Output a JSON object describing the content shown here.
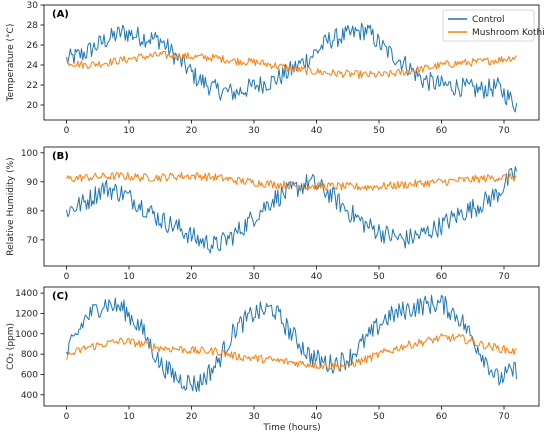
{
  "chart_data": {
    "type": "line",
    "xlabel": "Time (hours)",
    "x_ticks": [
      0,
      10,
      20,
      30,
      40,
      50,
      60,
      70
    ],
    "xlim": [
      -3.6,
      75.6
    ],
    "legend": {
      "placement": "top-right",
      "entries": [
        "Control",
        "Mushroom Kothi"
      ]
    },
    "colors": {
      "Control": "#1f77b4",
      "Mushroom Kothi": "#ff7f0e"
    },
    "panels": [
      {
        "label": "(A)",
        "ylabel": "Temperature (°C)",
        "ylim": [
          18.5,
          30
        ],
        "y_ticks": [
          20,
          22,
          24,
          26,
          28,
          30
        ],
        "series": [
          {
            "name": "Control",
            "x": [
              0,
              3,
              6,
              9,
              12,
              15,
              18,
              21,
              24,
              27,
              30,
              33,
              36,
              39,
              42,
              45,
              48,
              51,
              54,
              57,
              60,
              63,
              66,
              69,
              72
            ],
            "y": [
              24.5,
              25.2,
              26.4,
              27.3,
              26.8,
              26.5,
              24.5,
              22.6,
              21.5,
              21.2,
              21.9,
              22.4,
              23.5,
              24.8,
              26.5,
              27.0,
              27.5,
              25.5,
              24.2,
              22.5,
              22.0,
              21.8,
              21.5,
              21.8,
              20.0
            ]
          },
          {
            "name": "Mushroom Kothi",
            "x": [
              0,
              3,
              6,
              9,
              12,
              15,
              18,
              21,
              24,
              27,
              30,
              33,
              36,
              39,
              42,
              45,
              48,
              51,
              54,
              57,
              60,
              63,
              66,
              69,
              72
            ],
            "y": [
              24.3,
              24.0,
              24.2,
              24.5,
              24.8,
              25.0,
              24.9,
              24.8,
              24.7,
              24.4,
              24.3,
              24.0,
              23.6,
              23.4,
              23.2,
              23.1,
              23.0,
              23.0,
              23.3,
              23.6,
              24.0,
              24.2,
              24.3,
              24.5,
              24.8
            ]
          }
        ]
      },
      {
        "label": "(B)",
        "ylabel": "Relative Humidity (%)",
        "ylim": [
          61,
          102
        ],
        "y_ticks": [
          70,
          80,
          90,
          100
        ],
        "series": [
          {
            "name": "Control",
            "x": [
              0,
              3,
              6,
              9,
              12,
              15,
              18,
              21,
              24,
              27,
              30,
              33,
              36,
              39,
              42,
              45,
              48,
              51,
              54,
              57,
              60,
              63,
              66,
              69,
              72
            ],
            "y": [
              80,
              83,
              88,
              86,
              82,
              77,
              74,
              70,
              68,
              72,
              78,
              84,
              87,
              90,
              86,
              80,
              75,
              72,
              70,
              72,
              75,
              79,
              82,
              86,
              94
            ]
          },
          {
            "name": "Mushroom Kothi",
            "x": [
              0,
              3,
              6,
              9,
              12,
              15,
              18,
              21,
              24,
              27,
              30,
              33,
              36,
              39,
              42,
              45,
              48,
              51,
              54,
              57,
              60,
              63,
              66,
              69,
              72
            ],
            "y": [
              91,
              91.5,
              91.8,
              92,
              91.5,
              91.5,
              92,
              92,
              91.5,
              90.5,
              89.8,
              89.2,
              88.8,
              88.5,
              88.5,
              88.3,
              88.2,
              88.5,
              89,
              89.5,
              90,
              90.5,
              91,
              91.5,
              91.5
            ]
          }
        ]
      },
      {
        "label": "(C)",
        "ylabel": "CO₂ (ppm)",
        "ylim": [
          290,
          1460
        ],
        "y_ticks": [
          400,
          600,
          800,
          1000,
          1200,
          1400
        ],
        "series": [
          {
            "name": "Control",
            "x": [
              0,
              3,
              6,
              9,
              12,
              15,
              18,
              21,
              24,
              27,
              30,
              33,
              36,
              39,
              42,
              45,
              48,
              51,
              54,
              57,
              60,
              63,
              66,
              69,
              72
            ],
            "y": [
              800,
              1150,
              1300,
              1250,
              1050,
              700,
              550,
              500,
              700,
              1050,
              1200,
              1250,
              1000,
              780,
              700,
              750,
              950,
              1150,
              1230,
              1280,
              1300,
              1150,
              850,
              550,
              650
            ]
          },
          {
            "name": "Mushroom Kothi",
            "x": [
              0,
              3,
              6,
              9,
              12,
              15,
              18,
              21,
              24,
              27,
              30,
              33,
              36,
              39,
              42,
              45,
              48,
              51,
              54,
              57,
              60,
              63,
              66,
              69,
              72
            ],
            "y": [
              780,
              860,
              900,
              930,
              900,
              860,
              850,
              830,
              830,
              780,
              760,
              740,
              720,
              700,
              680,
              690,
              750,
              820,
              880,
              920,
              960,
              960,
              900,
              860,
              820
            ]
          }
        ]
      }
    ]
  }
}
